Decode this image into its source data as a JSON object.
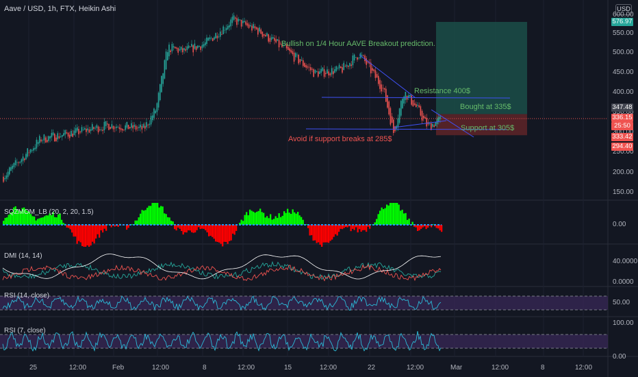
{
  "header": {
    "title": "Aave / USD, 1h, FTX, Heikin Ashi"
  },
  "currency_button": "USD",
  "annotations": {
    "bullish": "Bullish on 1/4 Hour AAVE Breakout prediction.",
    "resistance": "Resistance 400$",
    "bought": "Bought at 335$",
    "support": "Support at 305$",
    "avoid": "Avoid if support breaks at 285$"
  },
  "price_axis": {
    "ticks": [
      "600.00",
      "550.00",
      "500.00",
      "450.00",
      "400.00",
      "350.00",
      "300.00",
      "250.00",
      "200.00",
      "150.00"
    ],
    "tags": {
      "top": "576.97",
      "last": "347.48",
      "p336": "336.15",
      "countdown": "25:50",
      "p333": "333.42",
      "p294": "294.40"
    }
  },
  "time_axis": {
    "labels": [
      "25",
      "12:00",
      "Feb",
      "12:00",
      "8",
      "12:00",
      "15",
      "12:00",
      "22",
      "12:00",
      "Mar",
      "12:00",
      "8",
      "12:00"
    ]
  },
  "indicators": {
    "zmom": {
      "title": "SQZMOM_LB (20, 2, 20, 1.5)",
      "axis": "0.00"
    },
    "dmi": {
      "title": "DMI (14, 14)",
      "axis": [
        "40.0000",
        "0.0000"
      ]
    },
    "rsi14": {
      "title": "RSI (14, close)",
      "axis": "50.00"
    },
    "rsi7": {
      "title": "RSI (7, close)",
      "axis": [
        "100.00",
        "0.00"
      ]
    }
  },
  "colors": {
    "bg": "#131722",
    "up": "#26a69a",
    "down": "#ef5350",
    "green": "#00ff00",
    "red": "#ff0000",
    "text_green": "#4caf50",
    "text_red": "#ef5350",
    "dmi_plus": "#26a69a",
    "dmi_minus": "#ef5350",
    "adx": "#ffffff",
    "rsi": "#2bbbd8",
    "band": "#3a2a5a"
  }
}
